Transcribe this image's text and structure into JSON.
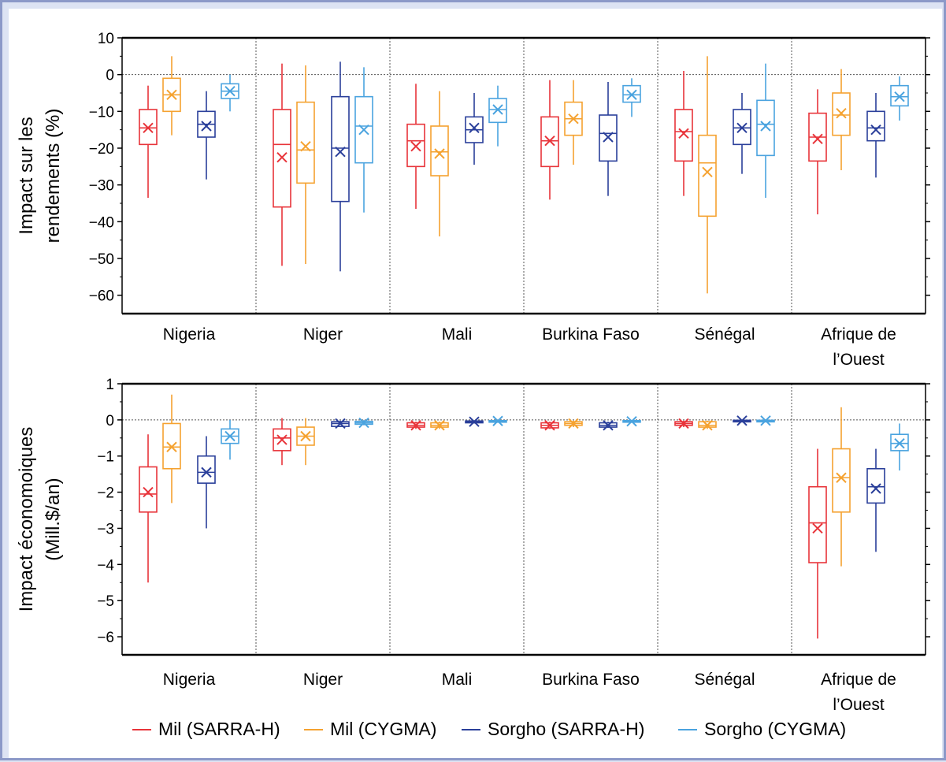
{
  "panels": [
    {
      "ylabel_lines": [
        "Impact sur les",
        "rendements (%)"
      ],
      "ylim": [
        -65,
        10
      ],
      "yticks": [
        10,
        0,
        -10,
        -20,
        -30,
        -40,
        -50,
        -60
      ],
      "ytick_labels": [
        "10",
        "0",
        "−10",
        "−20",
        "−30",
        "−40",
        "−50",
        "−60"
      ]
    },
    {
      "ylabel_lines": [
        "Impact économoiques",
        "(Mill.$/an)"
      ],
      "ylim": [
        -6.5,
        1
      ],
      "yticks": [
        1,
        0,
        -1,
        -2,
        -3,
        -4,
        -5,
        -6
      ],
      "ytick_labels": [
        "1",
        "0",
        "−1",
        "−2",
        "−3",
        "−4",
        "−5",
        "−6"
      ]
    }
  ],
  "legend": [
    {
      "name": "Mil (SARRA-H)",
      "color": "#e8343a"
    },
    {
      "name": "Mil (CYGMA)",
      "color": "#f5a230"
    },
    {
      "name": "Sorgho (SARRA-H)",
      "color": "#2a3f9a"
    },
    {
      "name": "Sorgho (CYGMA)",
      "color": "#4aa3df"
    }
  ],
  "chart_data": [
    {
      "type": "box",
      "ylabel": "Impact sur les rendements (%)",
      "ylim": [
        -65,
        10
      ],
      "categories": [
        {
          "lines": [
            "Nigeria"
          ]
        },
        {
          "lines": [
            "Niger"
          ]
        },
        {
          "lines": [
            "Mali"
          ]
        },
        {
          "lines": [
            "Burkina Faso"
          ]
        },
        {
          "lines": [
            "Sénégal"
          ]
        },
        {
          "lines": [
            "Afrique de",
            "l’Ouest"
          ]
        }
      ],
      "series": [
        {
          "name": "Mil (SARRA-H)",
          "color": "#e8343a",
          "boxes": [
            {
              "min": -33.5,
              "q1": -19,
              "median": -14.5,
              "q3": -9.5,
              "max": -3,
              "mean": -14.5
            },
            {
              "min": -52,
              "q1": -36,
              "median": -19,
              "q3": -9.5,
              "max": 3,
              "mean": -22.5
            },
            {
              "min": -36.5,
              "q1": -25,
              "median": -18,
              "q3": -13.5,
              "max": -2.5,
              "mean": -19.5
            },
            {
              "min": -34,
              "q1": -25,
              "median": -18,
              "q3": -11.5,
              "max": -1.5,
              "mean": -18
            },
            {
              "min": -33,
              "q1": -23.5,
              "median": -15.5,
              "q3": -9.5,
              "max": 1,
              "mean": -16
            },
            {
              "min": -38,
              "q1": -23.5,
              "median": -17,
              "q3": -10.5,
              "max": -4,
              "mean": -17.5
            }
          ]
        },
        {
          "name": "Mil (CYGMA)",
          "color": "#f5a230",
          "boxes": [
            {
              "min": -16.5,
              "q1": -10,
              "median": -5.5,
              "q3": -1,
              "max": 5,
              "mean": -5.5
            },
            {
              "min": -51.5,
              "q1": -29.5,
              "median": -20.5,
              "q3": -7.5,
              "max": 2.5,
              "mean": -19.5
            },
            {
              "min": -44,
              "q1": -27.5,
              "median": -21,
              "q3": -14,
              "max": -4.5,
              "mean": -21.5
            },
            {
              "min": -24.5,
              "q1": -16.5,
              "median": -12,
              "q3": -7.5,
              "max": -1.5,
              "mean": -12
            },
            {
              "min": -59.5,
              "q1": -38.5,
              "median": -24,
              "q3": -16.5,
              "max": 5,
              "mean": -26.5
            },
            {
              "min": -26,
              "q1": -16.5,
              "median": -11,
              "q3": -5,
              "max": 1.5,
              "mean": -10.5
            }
          ]
        },
        {
          "name": "Sorgho (SARRA-H)",
          "color": "#2a3f9a",
          "boxes": [
            {
              "min": -28.5,
              "q1": -17,
              "median": -13.5,
              "q3": -10,
              "max": -4.5,
              "mean": -14
            },
            {
              "min": -53.5,
              "q1": -34.5,
              "median": -20,
              "q3": -6,
              "max": 3.5,
              "mean": -21
            },
            {
              "min": -24.5,
              "q1": -18.5,
              "median": -15,
              "q3": -11.5,
              "max": -5,
              "mean": -14.5
            },
            {
              "min": -33,
              "q1": -23.5,
              "median": -16,
              "q3": -11,
              "max": -2,
              "mean": -17
            },
            {
              "min": -27,
              "q1": -19,
              "median": -14.5,
              "q3": -9.5,
              "max": -5,
              "mean": -14.5
            },
            {
              "min": -28,
              "q1": -18,
              "median": -14.5,
              "q3": -10,
              "max": -5,
              "mean": -15
            }
          ]
        },
        {
          "name": "Sorgho (CYGMA)",
          "color": "#4aa3df",
          "boxes": [
            {
              "min": -10,
              "q1": -6.5,
              "median": -4.5,
              "q3": -2.5,
              "max": 0,
              "mean": -4.5
            },
            {
              "min": -37.5,
              "q1": -24,
              "median": -14,
              "q3": -6,
              "max": 2,
              "mean": -15
            },
            {
              "min": -19.5,
              "q1": -13,
              "median": -9.5,
              "q3": -6.5,
              "max": -3,
              "mean": -9.5
            },
            {
              "min": -11.5,
              "q1": -7.5,
              "median": -5.5,
              "q3": -3,
              "max": -1,
              "mean": -5.5
            },
            {
              "min": -33.5,
              "q1": -22,
              "median": -13.5,
              "q3": -7,
              "max": 3,
              "mean": -14
            },
            {
              "min": -12.5,
              "q1": -8.5,
              "median": -6,
              "q3": -3,
              "max": -0.5,
              "mean": -6
            }
          ]
        }
      ]
    },
    {
      "type": "box",
      "ylabel": "Impact économoiques (Mill.$/an)",
      "ylim": [
        -6.5,
        1
      ],
      "categories": [
        {
          "lines": [
            "Nigeria"
          ]
        },
        {
          "lines": [
            "Niger"
          ]
        },
        {
          "lines": [
            "Mali"
          ]
        },
        {
          "lines": [
            "Burkina Faso"
          ]
        },
        {
          "lines": [
            "Sénégal"
          ]
        },
        {
          "lines": [
            "Afrique de",
            "l’Ouest"
          ]
        }
      ],
      "series": [
        {
          "name": "Mil (SARRA-H)",
          "color": "#e8343a",
          "boxes": [
            {
              "min": -4.5,
              "q1": -2.55,
              "median": -2.05,
              "q3": -1.3,
              "max": -0.4,
              "mean": -2
            },
            {
              "min": -1.25,
              "q1": -0.85,
              "median": -0.5,
              "q3": -0.25,
              "max": 0.05,
              "mean": -0.55
            },
            {
              "min": -0.25,
              "q1": -0.2,
              "median": -0.15,
              "q3": -0.08,
              "max": -0.05,
              "mean": -0.15
            },
            {
              "min": -0.25,
              "q1": -0.22,
              "median": -0.15,
              "q3": -0.08,
              "max": -0.05,
              "mean": -0.15
            },
            {
              "min": -0.2,
              "q1": -0.15,
              "median": -0.1,
              "q3": -0.05,
              "max": -0.02,
              "mean": -0.1
            },
            {
              "min": -6.05,
              "q1": -3.95,
              "median": -2.85,
              "q3": -1.85,
              "max": -0.8,
              "mean": -3
            }
          ]
        },
        {
          "name": "Mil (CYGMA)",
          "color": "#f5a230",
          "boxes": [
            {
              "min": -2.3,
              "q1": -1.35,
              "median": -0.75,
              "q3": -0.1,
              "max": 0.7,
              "mean": -0.75
            },
            {
              "min": -1.25,
              "q1": -0.7,
              "median": -0.45,
              "q3": -0.2,
              "max": 0.05,
              "mean": -0.45
            },
            {
              "min": -0.25,
              "q1": -0.2,
              "median": -0.15,
              "q3": -0.08,
              "max": -0.05,
              "mean": -0.15
            },
            {
              "min": -0.2,
              "q1": -0.15,
              "median": -0.1,
              "q3": -0.05,
              "max": -0.02,
              "mean": -0.1
            },
            {
              "min": -0.25,
              "q1": -0.2,
              "median": -0.15,
              "q3": -0.05,
              "max": -0.02,
              "mean": -0.15
            },
            {
              "min": -4.05,
              "q1": -2.55,
              "median": -1.6,
              "q3": -0.8,
              "max": 0.35,
              "mean": -1.6
            }
          ]
        },
        {
          "name": "Sorgho (SARRA-H)",
          "color": "#2a3f9a",
          "boxes": [
            {
              "min": -3,
              "q1": -1.75,
              "median": -1.45,
              "q3": -1,
              "max": -0.45,
              "mean": -1.45
            },
            {
              "min": -0.2,
              "q1": -0.18,
              "median": -0.1,
              "q3": -0.05,
              "max": -0.02,
              "mean": -0.1
            },
            {
              "min": -0.1,
              "q1": -0.08,
              "median": -0.05,
              "q3": -0.03,
              "max": -0.01,
              "mean": -0.05
            },
            {
              "min": -0.22,
              "q1": -0.2,
              "median": -0.15,
              "q3": -0.08,
              "max": -0.05,
              "mean": -0.15
            },
            {
              "min": -0.05,
              "q1": -0.04,
              "median": -0.02,
              "q3": -0.01,
              "max": 0,
              "mean": -0.02
            },
            {
              "min": -3.65,
              "q1": -2.3,
              "median": -1.85,
              "q3": -1.35,
              "max": -0.8,
              "mean": -1.9
            }
          ]
        },
        {
          "name": "Sorgho (CYGMA)",
          "color": "#4aa3df",
          "boxes": [
            {
              "min": -1.1,
              "q1": -0.65,
              "median": -0.45,
              "q3": -0.25,
              "max": 0,
              "mean": -0.45
            },
            {
              "min": -0.15,
              "q1": -0.12,
              "median": -0.08,
              "q3": -0.04,
              "max": 0,
              "mean": -0.08
            },
            {
              "min": -0.06,
              "q1": -0.05,
              "median": -0.03,
              "q3": -0.02,
              "max": -0.01,
              "mean": -0.03
            },
            {
              "min": -0.08,
              "q1": -0.06,
              "median": -0.04,
              "q3": -0.02,
              "max": 0,
              "mean": -0.04
            },
            {
              "min": -0.04,
              "q1": -0.03,
              "median": -0.02,
              "q3": -0.01,
              "max": 0,
              "mean": -0.02
            },
            {
              "min": -1.4,
              "q1": -0.85,
              "median": -0.65,
              "q3": -0.4,
              "max": -0.1,
              "mean": -0.65
            }
          ]
        }
      ]
    }
  ]
}
